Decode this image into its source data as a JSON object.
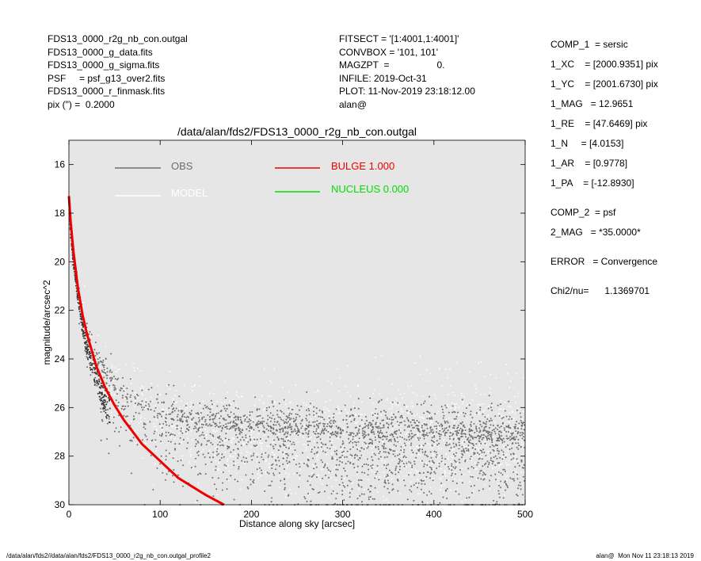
{
  "header_left": [
    "FDS13_0000_r2g_nb_con.outgal",
    "FDS13_0000_g_data.fits",
    "FDS13_0000_g_sigma.fits",
    "PSF     = psf_g13_over2.fits",
    "FDS13_0000_r_finmask.fits",
    "pix (\") =  0.2000"
  ],
  "header_mid": [
    "FITSECT = '[1:4001,1:4001]'",
    "CONVBOX = '101, 101'",
    "MAGZPT  =                  0.",
    "INFILE: 2019-Oct-31",
    "PLOT: 11-Nov-2019 23:18:12.00",
    "alan@"
  ],
  "header_right": [
    "COMP_1  = sersic",
    "1_XC    = [2000.9351] pix",
    "1_YC    = [2001.6730] pix",
    "1_MAG   = 12.9651",
    "1_RE    = [47.6469] pix",
    "1_N     = [4.0153]",
    "1_AR    = [0.9778]",
    "1_PA    = [-12.8930]",
    "",
    "COMP_2  = psf",
    "2_MAG   = *35.0000*",
    "",
    "ERROR   = Convergence",
    "",
    "Chi2/nu=      1.1369701"
  ],
  "footer_left": "/data/alan/fds2//data/alan/fds2/FDS13_0000_r2g_nb_con.outgal_profile2",
  "footer_right": "alan@  Mon Nov 11 23:18:13 2019",
  "colors": {
    "plot_bg": "#e6e6e6",
    "obs": "#6e6e6e",
    "model": "#ffffff",
    "bulge": "#ee0000",
    "nucleus": "#00dd00"
  },
  "chart_data": {
    "type": "scatter",
    "title": "/data/alan/fds2/FDS13_0000_r2g_nb_con.outgal",
    "xlabel": "Distance along sky [arcsec]",
    "ylabel": "magnitude/arcsec^2",
    "xlim": [
      0,
      500
    ],
    "ylim": [
      30,
      15
    ],
    "y_inverted": true,
    "xticks": [
      0,
      100,
      200,
      300,
      400,
      500
    ],
    "yticks": [
      16,
      18,
      20,
      22,
      24,
      26,
      28,
      30
    ],
    "grid": false,
    "legend": [
      {
        "label": "OBS",
        "color": "#6e6e6e"
      },
      {
        "label": "MODEL",
        "color": "#ffffff"
      },
      {
        "label": "BULGE  1.000",
        "color": "#ee0000"
      },
      {
        "label": "NUCLEUS  0.000",
        "color": "#00dd00"
      }
    ],
    "series": [
      {
        "name": "OBS",
        "description_points": "scatter cloud",
        "profile_x": [
          0,
          2,
          5,
          10,
          15,
          20,
          30,
          40,
          60,
          80,
          100,
          150,
          200,
          300,
          400,
          500
        ],
        "profile_y": [
          17.2,
          18.6,
          19.7,
          21.1,
          22.2,
          23.0,
          24.1,
          24.8,
          25.6,
          26.1,
          26.4,
          26.8,
          27.0,
          27.2,
          27.3,
          27.4
        ],
        "scatter_sigma": [
          0.1,
          0.2,
          0.3,
          0.35,
          0.4,
          0.45,
          0.5,
          0.6,
          0.7,
          0.75,
          0.8,
          0.85,
          0.9,
          0.95,
          1.0,
          1.0
        ]
      },
      {
        "name": "MODEL",
        "profile_x": [
          0,
          2,
          5,
          10,
          15,
          20,
          30,
          40,
          60,
          80,
          100,
          150,
          200,
          300,
          400,
          500
        ],
        "profile_y": [
          17.5,
          18.8,
          19.9,
          21.3,
          22.4,
          23.2,
          24.3,
          25.0,
          25.8,
          26.3,
          26.6,
          27.0,
          27.2,
          27.4,
          27.5,
          27.5
        ]
      },
      {
        "name": "BULGE",
        "x": [
          0,
          2,
          5,
          10,
          15,
          20,
          30,
          40,
          50,
          60,
          80,
          100,
          120,
          150,
          170
        ],
        "y": [
          17.3,
          18.4,
          19.6,
          21.1,
          22.2,
          23.0,
          24.3,
          25.2,
          25.9,
          26.5,
          27.5,
          28.2,
          28.9,
          29.6,
          30.0
        ]
      }
    ]
  }
}
